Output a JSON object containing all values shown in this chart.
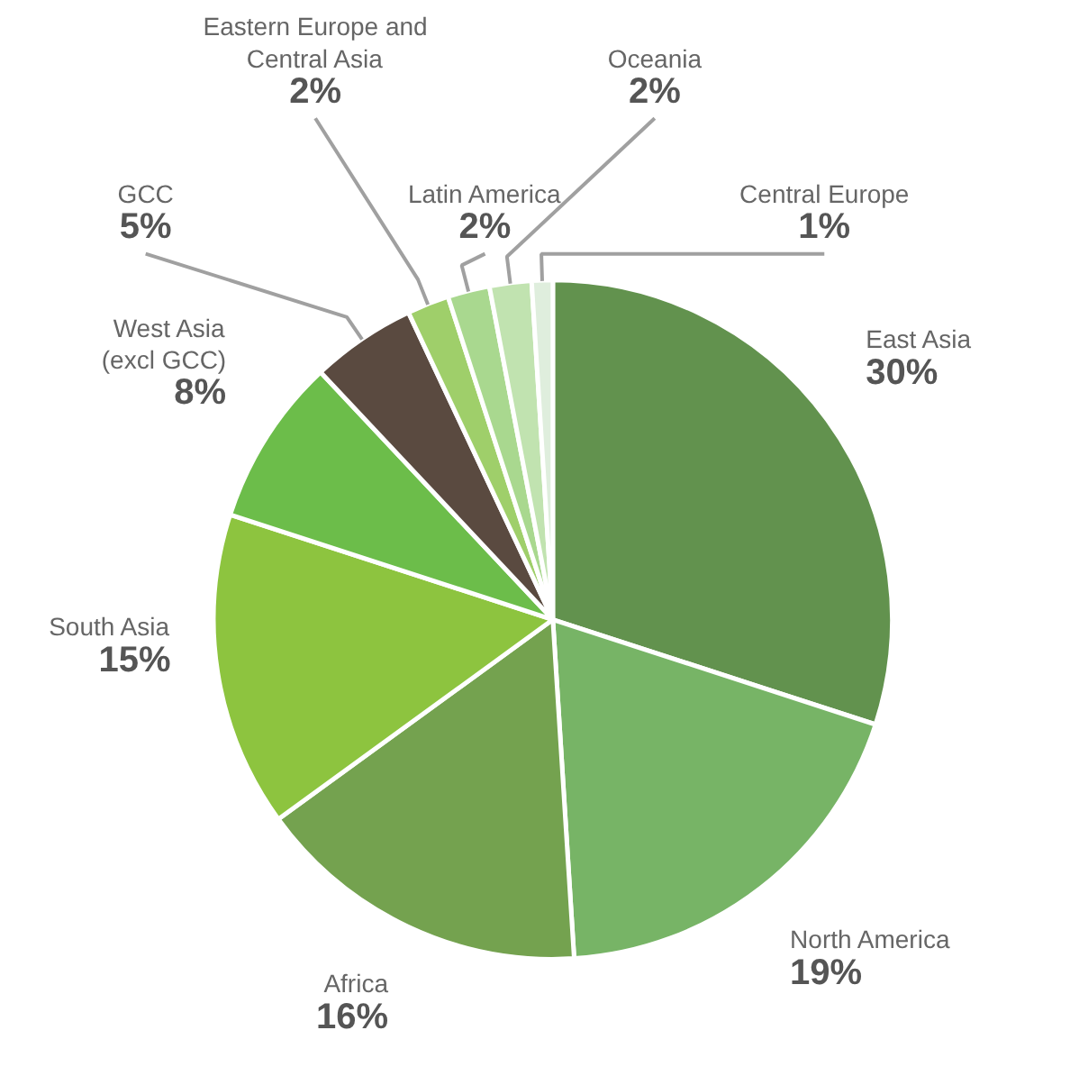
{
  "chart_data": {
    "type": "pie",
    "categories": [
      "East Asia",
      "North America",
      "Africa",
      "South Asia",
      "West Asia\n(excl GCC)",
      "GCC",
      "Eastern Europe and\nCentral Asia",
      "Latin America",
      "Oceania",
      "Central Europe"
    ],
    "values": [
      30,
      19,
      16,
      15,
      8,
      5,
      2,
      2,
      2,
      1
    ],
    "value_labels": [
      "30%",
      "19%",
      "16%",
      "15%",
      "8%",
      "5%",
      "2%",
      "2%",
      "2%",
      "1%"
    ],
    "colors": [
      "#62924e",
      "#77b466",
      "#74a24f",
      "#8dc43f",
      "#6cbd4a",
      "#5a4a40",
      "#9fcf6a",
      "#a9d88f",
      "#c1e3b0",
      "#dfeedd"
    ],
    "legend": false
  }
}
